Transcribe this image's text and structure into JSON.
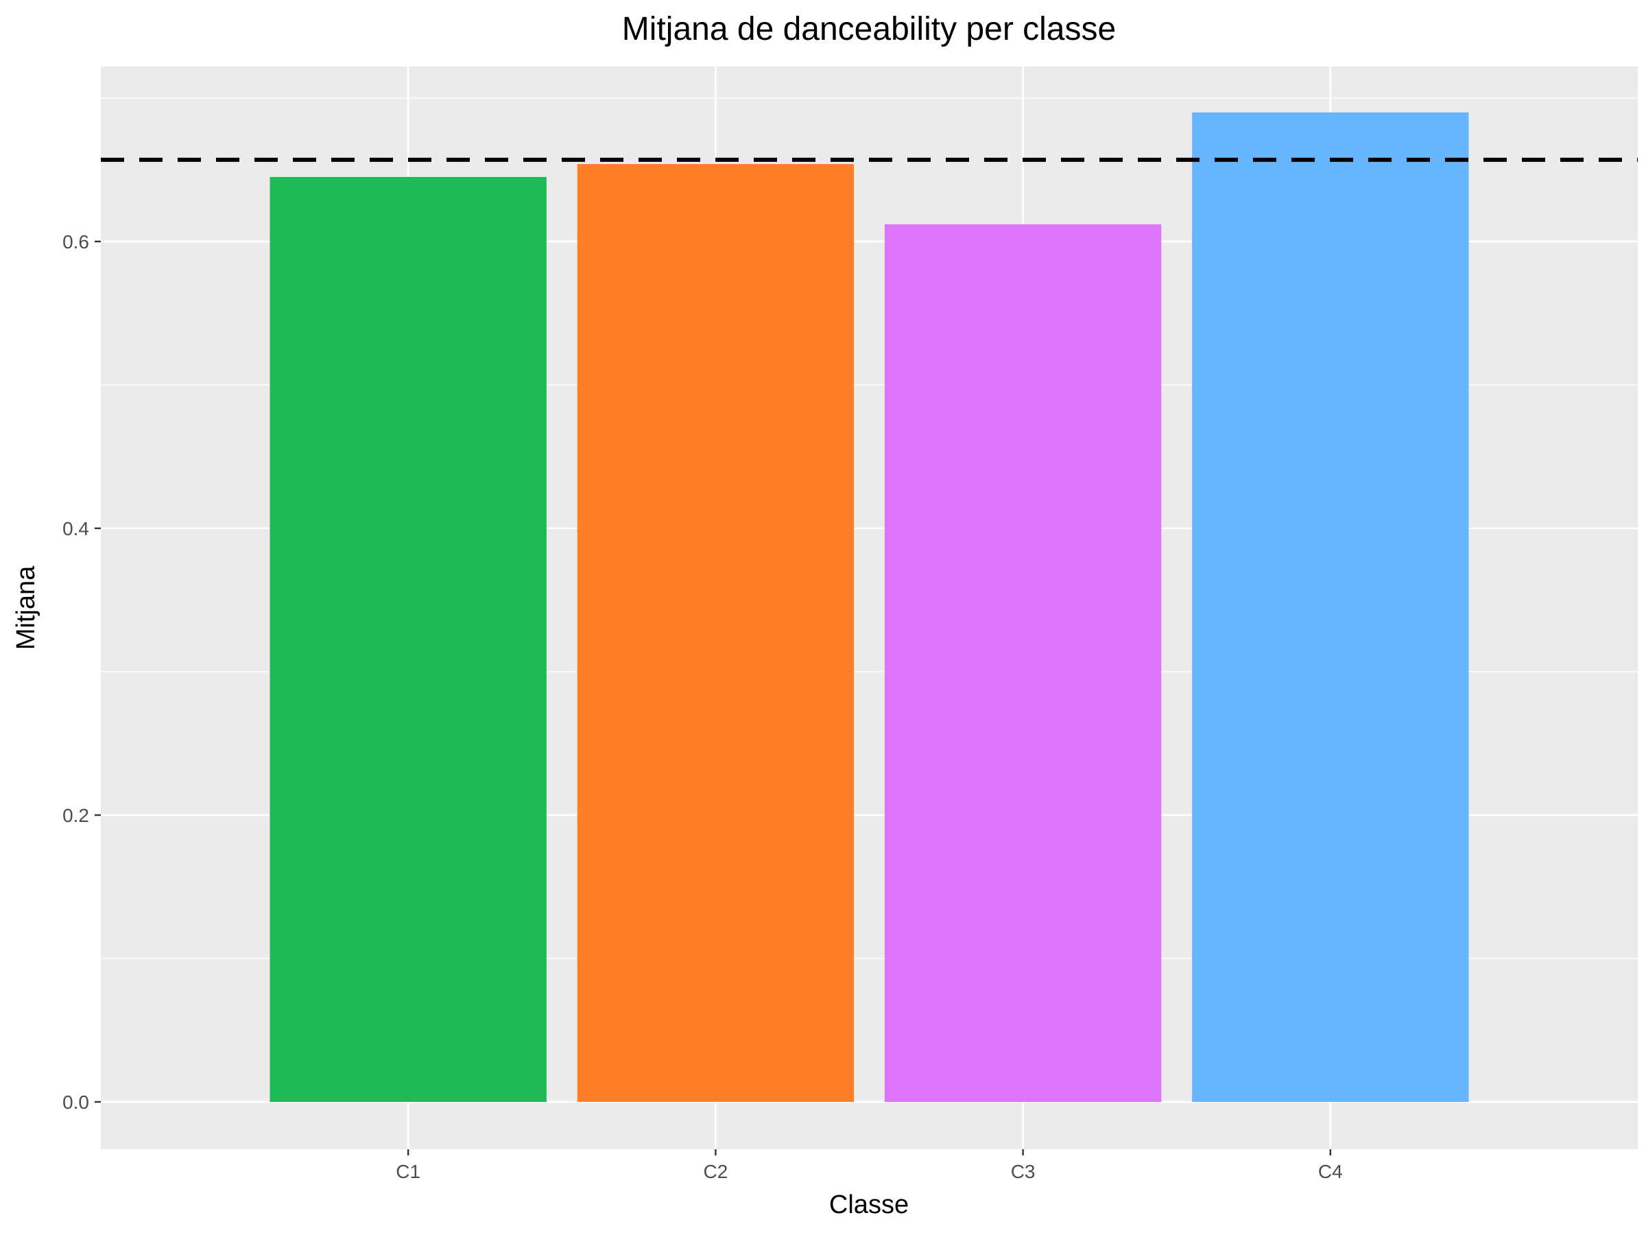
{
  "chart_data": {
    "type": "bar",
    "title": "Mitjana de danceability per classe",
    "xlabel": "Classe",
    "ylabel": "Mitjana",
    "categories": [
      "C1",
      "C2",
      "C3",
      "C4"
    ],
    "values": [
      0.645,
      0.654,
      0.612,
      0.69
    ],
    "colors": [
      "#1EBA55",
      "#FF7F27",
      "#DF75FD",
      "#67B5FF"
    ],
    "ylim": [
      -0.033,
      0.722
    ],
    "yticks": [
      0.0,
      0.2,
      0.4,
      0.6
    ],
    "ytick_labels": [
      "0.0",
      "0.2",
      "0.4",
      "0.6"
    ],
    "reference_line": {
      "value": 0.657,
      "style": "dashed",
      "color": "#000000"
    },
    "grid": true,
    "legend": "none",
    "panel_color": "#EBEBEB",
    "grid_color": "#FFFFFF"
  }
}
